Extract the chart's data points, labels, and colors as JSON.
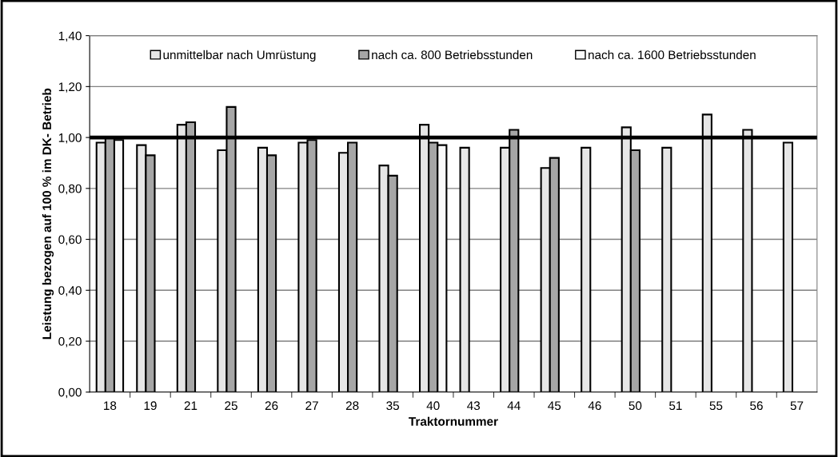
{
  "chart_data": {
    "type": "bar",
    "xlabel": "Traktornummer",
    "ylabel": "Leistung bezogen auf 100 % im DK- Betrieb",
    "categories": [
      "18",
      "19",
      "21",
      "25",
      "26",
      "27",
      "28",
      "35",
      "40",
      "43",
      "44",
      "45",
      "46",
      "50",
      "51",
      "55",
      "56",
      "57"
    ],
    "series": [
      {
        "name": "unmittelbar nach Umrüstung",
        "color": "#e6e6e6",
        "values": [
          0.98,
          0.97,
          1.05,
          0.95,
          0.96,
          0.98,
          0.94,
          0.89,
          1.05,
          0.96,
          0.96,
          0.88,
          0.96,
          1.04,
          0.96,
          1.09,
          1.03,
          0.98
        ]
      },
      {
        "name": "nach ca. 800 Betriebsstunden",
        "color": "#a6a6a6",
        "values": [
          1.0,
          0.93,
          1.06,
          1.12,
          0.93,
          0.99,
          0.98,
          0.85,
          0.98,
          null,
          1.03,
          0.92,
          null,
          0.95,
          null,
          null,
          null,
          null
        ]
      },
      {
        "name": "nach ca. 1600 Betriebsstunden",
        "color": "#fafafa",
        "values": [
          0.99,
          null,
          null,
          null,
          null,
          null,
          null,
          null,
          0.97,
          null,
          null,
          null,
          null,
          null,
          null,
          null,
          null,
          null
        ]
      }
    ],
    "ylim": [
      0,
      1.4
    ],
    "yticks": [
      {
        "value": 0,
        "label": "0,00"
      },
      {
        "value": 0.2,
        "label": "0,20"
      },
      {
        "value": 0.4,
        "label": "0,40"
      },
      {
        "value": 0.6,
        "label": "0,60"
      },
      {
        "value": 0.8,
        "label": "0,80"
      },
      {
        "value": 1.0,
        "label": "1,00"
      },
      {
        "value": 1.2,
        "label": "1,20"
      },
      {
        "value": 1.4,
        "label": "1,40"
      }
    ],
    "ref_lines": [
      {
        "axis": "y",
        "value": 1.0,
        "color": "#000000",
        "line_style": "solid"
      }
    ],
    "grid": "y",
    "legend": "top"
  }
}
